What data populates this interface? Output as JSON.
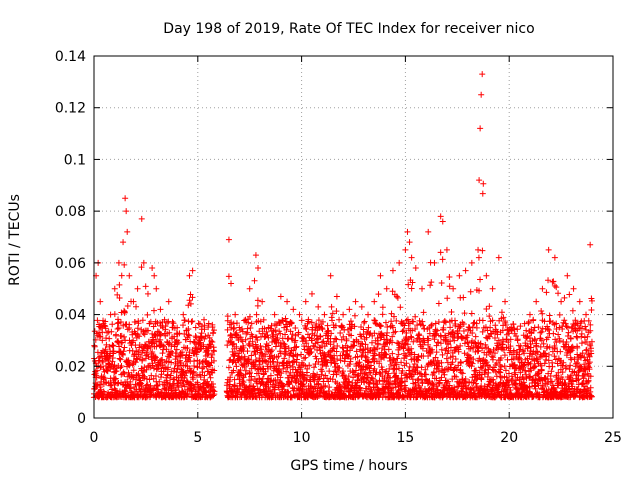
{
  "chart_data": {
    "type": "scatter",
    "title": "Day 198 of 2019, Rate Of TEC Index for receiver nico",
    "xlabel": "GPS time / hours",
    "ylabel": "ROTI / TECUs",
    "xlim": [
      0,
      25
    ],
    "ylim": [
      0,
      0.14
    ],
    "xticks": [
      0,
      5,
      10,
      15,
      20,
      25
    ],
    "xtick_labels": [
      "0",
      "5",
      "10",
      "15",
      "20",
      "25"
    ],
    "yticks": [
      0,
      0.02,
      0.04,
      0.06,
      0.08,
      0.1,
      0.12,
      0.14
    ],
    "ytick_labels": [
      "0",
      "0.02",
      "0.04",
      "0.06",
      "0.08",
      "0.1",
      "0.12",
      "0.14"
    ],
    "grid": true,
    "marker": "+",
    "color": "#ff0000",
    "series": [
      {
        "name": "ROTI",
        "x": [
          0.1,
          0.2,
          0.3,
          0.4,
          0.6,
          0.8,
          1.0,
          1.2,
          1.4,
          1.5,
          1.55,
          1.6,
          1.7,
          1.9,
          2.1,
          2.3,
          2.4,
          2.6,
          2.8,
          2.9,
          3.0,
          3.2,
          3.4,
          3.6,
          3.8,
          4.0,
          4.3,
          4.6,
          4.75,
          4.9,
          5.1,
          5.3,
          5.5,
          5.7,
          6.5,
          6.6,
          6.8,
          7.0,
          7.3,
          7.5,
          7.8,
          7.9,
          8.1,
          8.4,
          8.7,
          9.0,
          9.3,
          9.6,
          9.9,
          10.2,
          10.5,
          10.8,
          11.1,
          11.4,
          11.7,
          12.0,
          12.3,
          12.6,
          12.9,
          13.2,
          13.5,
          13.8,
          14.1,
          14.4,
          14.7,
          15.0,
          15.1,
          15.2,
          15.3,
          15.5,
          15.8,
          16.1,
          16.4,
          16.7,
          16.8,
          17.0,
          17.3,
          17.6,
          17.9,
          18.2,
          18.5,
          18.55,
          18.6,
          18.65,
          18.7,
          18.9,
          19.2,
          19.5,
          19.8,
          20.1,
          20.4,
          20.7,
          21.0,
          21.3,
          21.6,
          21.9,
          22.2,
          22.5,
          22.8,
          23.1,
          23.4,
          23.7,
          23.9,
          0.3,
          1.0,
          2.0,
          3.0,
          4.0,
          5.0,
          7.0,
          8.5,
          10.0,
          11.5,
          13.0,
          14.5,
          16.0,
          17.5,
          19.0,
          20.5,
          22.0,
          23.5,
          0.5,
          1.5,
          2.5,
          3.5,
          4.5,
          5.5,
          7.5,
          9.0,
          10.5,
          12.0,
          13.5,
          15.0,
          16.5,
          18.0,
          19.5,
          21.0,
          22.5,
          23.8
        ],
        "y": [
          0.055,
          0.06,
          0.045,
          0.03,
          0.025,
          0.04,
          0.05,
          0.06,
          0.068,
          0.085,
          0.08,
          0.072,
          0.055,
          0.045,
          0.05,
          0.077,
          0.06,
          0.048,
          0.058,
          0.055,
          0.05,
          0.042,
          0.038,
          0.045,
          0.035,
          0.03,
          0.04,
          0.055,
          0.057,
          0.035,
          0.03,
          0.038,
          0.032,
          0.036,
          0.069,
          0.052,
          0.04,
          0.035,
          0.038,
          0.05,
          0.063,
          0.058,
          0.045,
          0.035,
          0.04,
          0.047,
          0.045,
          0.042,
          0.04,
          0.045,
          0.048,
          0.043,
          0.04,
          0.055,
          0.047,
          0.04,
          0.042,
          0.045,
          0.043,
          0.04,
          0.045,
          0.055,
          0.05,
          0.057,
          0.06,
          0.065,
          0.072,
          0.068,
          0.062,
          0.058,
          0.05,
          0.072,
          0.06,
          0.078,
          0.076,
          0.065,
          0.05,
          0.055,
          0.057,
          0.06,
          0.065,
          0.092,
          0.112,
          0.125,
          0.133,
          0.055,
          0.05,
          0.062,
          0.045,
          0.035,
          0.03,
          0.032,
          0.04,
          0.045,
          0.05,
          0.065,
          0.062,
          0.045,
          0.055,
          0.05,
          0.045,
          0.04,
          0.067,
          0.012,
          0.015,
          0.013,
          0.014,
          0.012,
          0.013,
          0.015,
          0.014,
          0.013,
          0.015,
          0.014,
          0.016,
          0.015,
          0.014,
          0.013,
          0.015,
          0.014,
          0.013,
          0.025,
          0.03,
          0.028,
          0.022,
          0.02,
          0.018,
          0.028,
          0.025,
          0.03,
          0.027,
          0.025,
          0.03,
          0.028,
          0.032,
          0.03,
          0.025,
          0.022,
          0.02
        ]
      }
    ]
  }
}
